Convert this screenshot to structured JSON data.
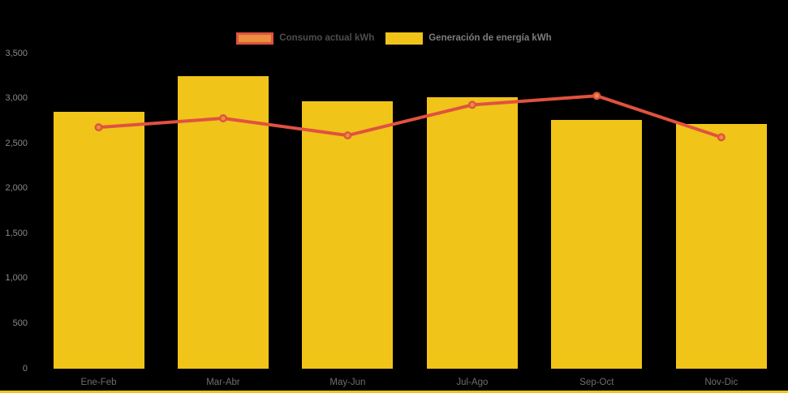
{
  "chart_data": {
    "type": "bar",
    "title": "",
    "xlabel": "",
    "ylabel": "",
    "categories": [
      "Ene-Feb",
      "Mar-Abr",
      "May-Jun",
      "Jul-Ago",
      "Sep-Oct",
      "Nov-Dic"
    ],
    "series": [
      {
        "name": "Consumo actual kWh",
        "type": "line",
        "values": [
          2680,
          2780,
          2590,
          2930,
          3030,
          2570
        ],
        "color": "#E05240",
        "marker_color": "#E98F3D",
        "label_color": "#4D4D4D"
      },
      {
        "name": "Generación de energía kWh",
        "type": "bar",
        "values": [
          2850,
          3250,
          2970,
          3010,
          2760,
          2715
        ],
        "color": "#F0C419",
        "label_color": "#7D7D7D"
      }
    ],
    "ylim": [
      0,
      3500
    ],
    "yticks": [
      {
        "value": 0,
        "label": "0"
      },
      {
        "value": 500,
        "label": "500"
      },
      {
        "value": 1000,
        "label": "1,000"
      },
      {
        "value": 1500,
        "label": "1,500"
      },
      {
        "value": 2000,
        "label": "2,000"
      },
      {
        "value": 2500,
        "label": "2,500"
      },
      {
        "value": 3000,
        "label": "3,000"
      },
      {
        "value": 3500,
        "label": "3,500"
      }
    ],
    "legend_position": "top",
    "grid": false,
    "background_color": "#000000",
    "axis_strip_color": "#F0C419",
    "ytick_color": "#8A8A8A",
    "xtick_color": "#6E6E6E"
  }
}
